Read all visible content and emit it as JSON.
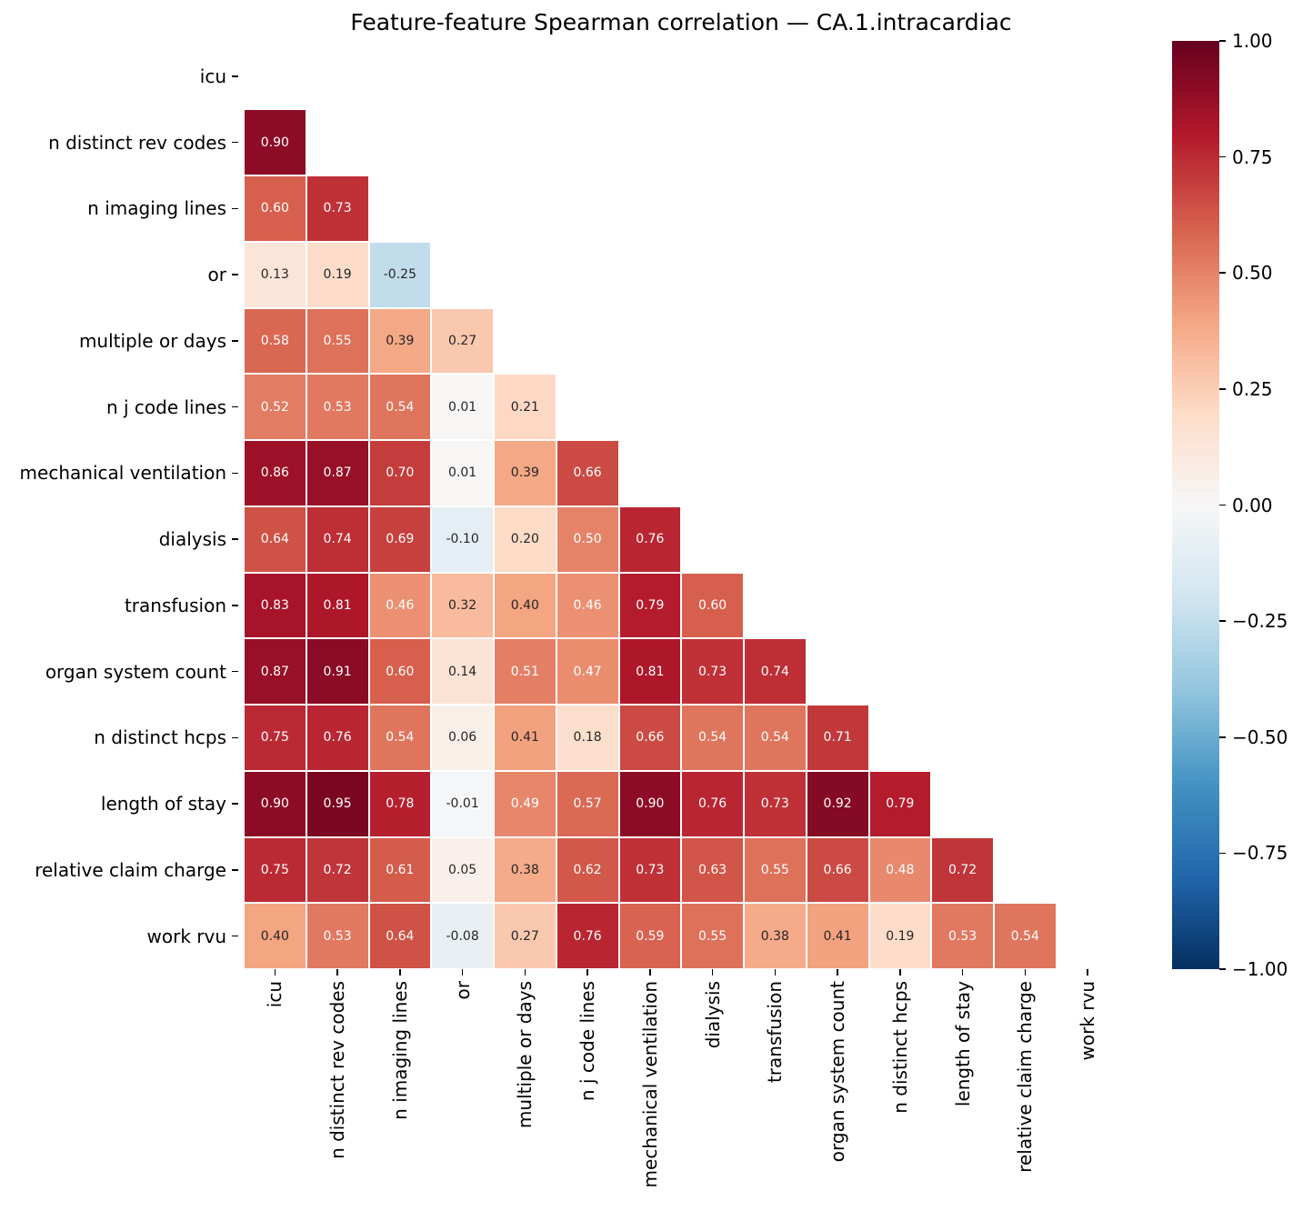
{
  "chart_data": {
    "type": "heatmap",
    "title": "Feature-feature Spearman correlation — CA.1.intracardiac",
    "labels": [
      "icu",
      "n distinct rev codes",
      "n imaging lines",
      "or",
      "multiple or days",
      "n j code lines",
      "mechanical ventilation",
      "dialysis",
      "transfusion",
      "organ system count",
      "n distinct hcps",
      "length of stay",
      "relative claim charge",
      "work rvu"
    ],
    "matrix_lower_triangle": [
      [],
      [
        0.9
      ],
      [
        0.6,
        0.73
      ],
      [
        0.13,
        0.19,
        -0.25
      ],
      [
        0.58,
        0.55,
        0.39,
        0.27
      ],
      [
        0.52,
        0.53,
        0.54,
        0.01,
        0.21
      ],
      [
        0.86,
        0.87,
        0.7,
        0.01,
        0.39,
        0.66
      ],
      [
        0.64,
        0.74,
        0.69,
        -0.1,
        0.2,
        0.5,
        0.76
      ],
      [
        0.83,
        0.81,
        0.46,
        0.32,
        0.4,
        0.46,
        0.79,
        0.6
      ],
      [
        0.87,
        0.91,
        0.6,
        0.14,
        0.51,
        0.47,
        0.81,
        0.73,
        0.74
      ],
      [
        0.75,
        0.76,
        0.54,
        0.06,
        0.41,
        0.18,
        0.66,
        0.54,
        0.54,
        0.71
      ],
      [
        0.9,
        0.95,
        0.78,
        -0.01,
        0.49,
        0.57,
        0.9,
        0.76,
        0.73,
        0.92,
        0.79
      ],
      [
        0.75,
        0.72,
        0.61,
        0.05,
        0.38,
        0.62,
        0.73,
        0.63,
        0.55,
        0.66,
        0.48,
        0.72
      ],
      [
        0.4,
        0.53,
        0.64,
        -0.08,
        0.27,
        0.76,
        0.59,
        0.55,
        0.38,
        0.41,
        0.19,
        0.53,
        0.54
      ]
    ],
    "value_format_decimals": 2,
    "grid_line_color": "#ffffff",
    "background_color": "#ffffff",
    "axis_text_color": "#000000",
    "annotation_text_colors": {
      "light": "#ffffff",
      "dark": "#262626"
    },
    "colormap": {
      "name": "RdBu_r",
      "domain": [
        -1,
        1
      ],
      "stops": [
        "#053061",
        "#2166ac",
        "#4393c3",
        "#92c5de",
        "#d1e5f0",
        "#f7f7f7",
        "#fddbc7",
        "#f4a582",
        "#d6604d",
        "#b2182b",
        "#67001f"
      ]
    },
    "colorbar": {
      "position": "right",
      "tick_labels": [
        "1.00",
        "0.75",
        "0.50",
        "0.25",
        "0.00",
        "−0.25",
        "−0.50",
        "−0.75",
        "−1.00"
      ]
    },
    "legend": "none",
    "grid": false
  }
}
